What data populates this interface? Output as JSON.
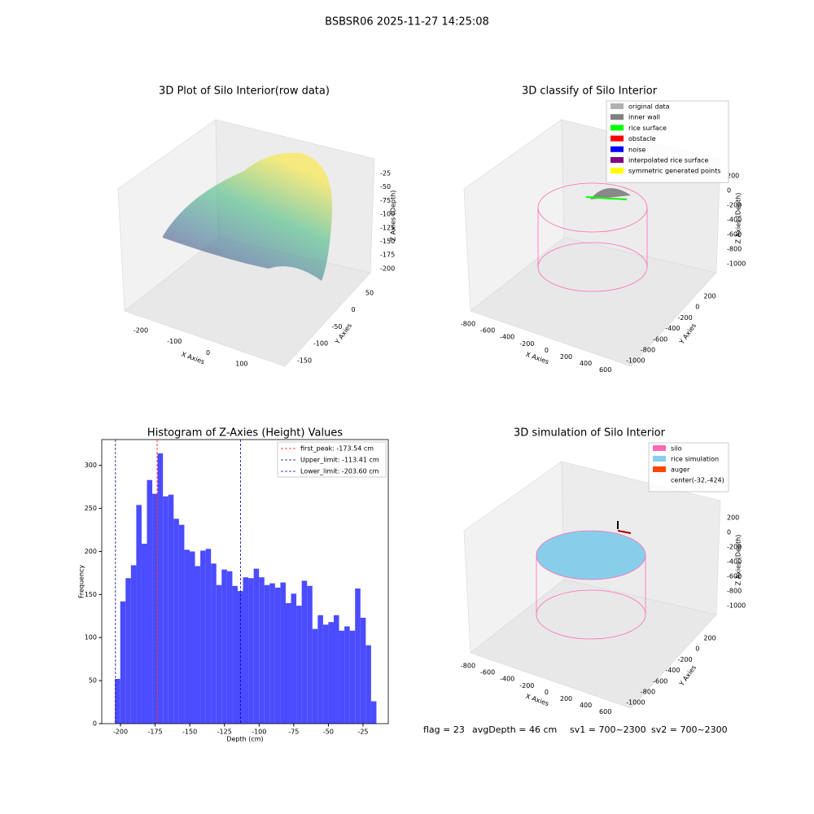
{
  "title": "BSBSR06 2025-11-27 14:25:08",
  "chart_data": [
    {
      "type": "scatter3d",
      "title": "3D Plot of Silo Interior(row data)",
      "x_label": "X Axies",
      "y_label": "Y Axies",
      "z_label": "Z Axies (Depth)",
      "xticks": [
        -200,
        -100,
        0,
        100
      ],
      "yticks": [
        50,
        0,
        -50,
        -100,
        -150
      ],
      "zticks": [
        -25,
        -50,
        -75,
        -100,
        -125,
        -150,
        -175,
        -200
      ]
    },
    {
      "type": "scatter3d",
      "title": "3D classify of Silo Interior",
      "x_label": "X Axies",
      "y_label": "Y Axies",
      "z_label": "Z Axies (Depth)",
      "xticks": [
        -800,
        -600,
        -400,
        -200,
        0,
        200,
        400,
        600
      ],
      "yticks": [
        200,
        0,
        -200,
        -400,
        -600,
        -800,
        -1000
      ],
      "zticks": [
        200,
        0,
        -200,
        -400,
        -600,
        -800,
        -1000
      ],
      "legend": [
        {
          "name": "original data",
          "color": "#b0b0b0"
        },
        {
          "name": "inner wall",
          "color": "#808080"
        },
        {
          "name": "rice surface",
          "color": "#00ff00"
        },
        {
          "name": "obstacle",
          "color": "#ff0000"
        },
        {
          "name": "noise",
          "color": "#0000ff"
        },
        {
          "name": "interpolated rice surface",
          "color": "#800080"
        },
        {
          "name": "symmetric generated points",
          "color": "#ffff00"
        }
      ]
    },
    {
      "type": "histogram",
      "title": "Histogram of Z-Axies (Height) Values",
      "x_label": "Depth (cm)",
      "y_label": "Frequency",
      "color": "#4b4bff",
      "bins": [
        -204.0,
        -200.15,
        -196.3,
        -192.45,
        -188.6,
        -184.75,
        -180.9,
        -177.05,
        -173.2,
        -169.35,
        -165.5,
        -161.65,
        -157.8,
        -153.95,
        -150.1,
        -146.25,
        -142.4,
        -138.55,
        -134.7,
        -130.85,
        -127.0,
        -123.15,
        -119.3,
        -115.45,
        -111.6,
        -107.75,
        -103.9,
        -100.05,
        -96.2,
        -92.35,
        -88.5,
        -84.65,
        -80.8,
        -76.95,
        -73.1,
        -69.25,
        -65.4,
        -61.55,
        -57.7,
        -53.85,
        -50.0,
        -46.15,
        -42.3,
        -38.45,
        -34.6,
        -30.75,
        -26.9,
        -23.05,
        -19.2,
        -15.35
      ],
      "values": [
        52,
        142,
        169,
        184,
        254,
        209,
        283,
        267,
        314,
        264,
        266,
        238,
        231,
        202,
        200,
        183,
        201,
        203,
        186,
        161,
        179,
        177,
        160,
        154,
        170,
        169,
        180,
        170,
        161,
        163,
        158,
        164,
        140,
        151,
        137,
        166,
        160,
        110,
        126,
        115,
        118,
        126,
        108,
        113,
        108,
        157,
        123,
        91,
        26
      ],
      "xlim": [
        -213.5,
        -6.8
      ],
      "ylim": [
        0,
        330
      ],
      "xticks": [
        -200,
        -175,
        -150,
        -125,
        -100,
        -75,
        -50,
        -25
      ],
      "yticks": [
        0,
        50,
        100,
        150,
        200,
        250,
        300
      ],
      "vlines": [
        {
          "label": "first_peak: -173.54 cm",
          "value": -173.54,
          "color": "#ff0000"
        },
        {
          "label": "Upper_limit: -113.41 cm",
          "value": -113.41,
          "color": "#0000aa"
        },
        {
          "label": "Lower_limit: -203.60 cm",
          "value": -203.6,
          "color": "#0000aa"
        }
      ]
    },
    {
      "type": "surface3d",
      "title": "3D simulation of Silo Interior",
      "x_label": "X Axies",
      "y_label": "Y Axies",
      "z_label": "Z Axies (Depth)",
      "xticks": [
        -800,
        -600,
        -400,
        -200,
        0,
        200,
        400,
        600
      ],
      "yticks": [
        200,
        0,
        -200,
        -400,
        -600,
        -800,
        -1000
      ],
      "zticks": [
        200,
        0,
        -200,
        -400,
        -600,
        -800,
        -1000
      ],
      "legend": [
        {
          "name": "silo",
          "color": "#ff69b4"
        },
        {
          "name": "rice simulation",
          "color": "#87ceeb"
        },
        {
          "name": "auger",
          "color": "#ff4500"
        },
        {
          "name": "center(-32,-424)",
          "color": "#ffffff"
        }
      ]
    }
  ],
  "status": [
    "flag = 23",
    "avgDepth = 46 cm",
    "sv1 = 700~2300",
    "sv2 = 700~2300"
  ]
}
